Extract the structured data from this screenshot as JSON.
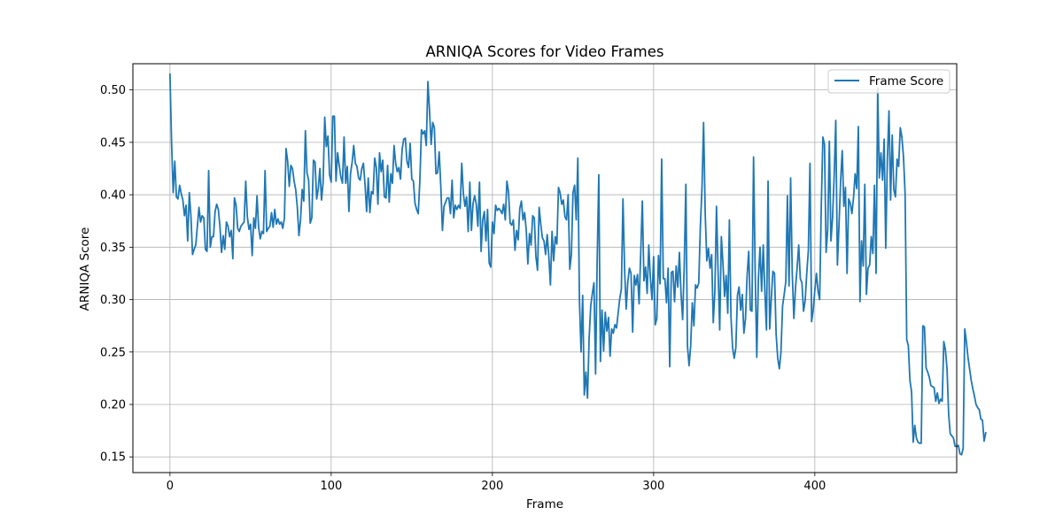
{
  "chart_data": {
    "type": "line",
    "title": "ARNIQA Scores for Video Frames",
    "xlabel": "Frame",
    "ylabel": "ARNIQA Score",
    "xlim": [
      -23,
      488
    ],
    "ylim": [
      0.135,
      0.525
    ],
    "x_ticks": [
      0,
      100,
      200,
      300,
      400
    ],
    "y_ticks": [
      0.15,
      0.2,
      0.25,
      0.3,
      0.35,
      0.4,
      0.45,
      0.5
    ],
    "x_tick_labels": [
      "0",
      "100",
      "200",
      "300",
      "400"
    ],
    "y_tick_labels": [
      "0.15",
      "0.20",
      "0.25",
      "0.30",
      "0.35",
      "0.40",
      "0.45",
      "0.50"
    ],
    "grid": true,
    "legend_position": "top-right",
    "colors": {
      "line": "#1f77b4",
      "grid": "#b0b0b0"
    },
    "series": [
      {
        "name": "Frame Score",
        "x_start": 0,
        "x_step": 1,
        "values": [
          0.515,
          0.45,
          0.402,
          0.432,
          0.398,
          0.396,
          0.409,
          0.401,
          0.395,
          0.38,
          0.39,
          0.356,
          0.402,
          0.38,
          0.343,
          0.348,
          0.352,
          0.37,
          0.388,
          0.374,
          0.38,
          0.378,
          0.348,
          0.346,
          0.423,
          0.35,
          0.36,
          0.36,
          0.384,
          0.391,
          0.386,
          0.37,
          0.345,
          0.361,
          0.348,
          0.374,
          0.37,
          0.36,
          0.366,
          0.339,
          0.397,
          0.39,
          0.368,
          0.365,
          0.37,
          0.372,
          0.374,
          0.413,
          0.379,
          0.367,
          0.372,
          0.342,
          0.378,
          0.368,
          0.399,
          0.369,
          0.358,
          0.365,
          0.363,
          0.423,
          0.365,
          0.368,
          0.37,
          0.383,
          0.369,
          0.386,
          0.372,
          0.377,
          0.372,
          0.374,
          0.368,
          0.378,
          0.444,
          0.432,
          0.408,
          0.428,
          0.425,
          0.413,
          0.405,
          0.388,
          0.361,
          0.376,
          0.405,
          0.394,
          0.461,
          0.421,
          0.414,
          0.373,
          0.378,
          0.433,
          0.431,
          0.396,
          0.406,
          0.425,
          0.395,
          0.412,
          0.474,
          0.446,
          0.456,
          0.419,
          0.412,
          0.475,
          0.475,
          0.413,
          0.44,
          0.428,
          0.417,
          0.411,
          0.455,
          0.411,
          0.427,
          0.384,
          0.42,
          0.431,
          0.447,
          0.43,
          0.427,
          0.416,
          0.414,
          0.425,
          0.43,
          0.41,
          0.384,
          0.416,
          0.383,
          0.403,
          0.401,
          0.435,
          0.426,
          0.391,
          0.44,
          0.422,
          0.433,
          0.398,
          0.397,
          0.428,
          0.393,
          0.42,
          0.411,
          0.447,
          0.43,
          0.422,
          0.426,
          0.415,
          0.443,
          0.453,
          0.454,
          0.432,
          0.426,
          0.449,
          0.415,
          0.413,
          0.392,
          0.386,
          0.382,
          0.413,
          0.462,
          0.458,
          0.461,
          0.447,
          0.508,
          0.48,
          0.448,
          0.469,
          0.464,
          0.42,
          0.421,
          0.441,
          0.408,
          0.366,
          0.389,
          0.393,
          0.397,
          0.397,
          0.382,
          0.414,
          0.378,
          0.39,
          0.386,
          0.39,
          0.387,
          0.43,
          0.401,
          0.389,
          0.398,
          0.365,
          0.412,
          0.366,
          0.392,
          0.399,
          0.391,
          0.37,
          0.412,
          0.346,
          0.376,
          0.384,
          0.356,
          0.386,
          0.335,
          0.331,
          0.374,
          0.363,
          0.39,
          0.385,
          0.387,
          0.385,
          0.382,
          0.391,
          0.376,
          0.413,
          0.403,
          0.373,
          0.371,
          0.376,
          0.347,
          0.366,
          0.357,
          0.387,
          0.394,
          0.376,
          0.383,
          0.366,
          0.334,
          0.363,
          0.352,
          0.38,
          0.378,
          0.341,
          0.328,
          0.388,
          0.372,
          0.359,
          0.356,
          0.343,
          0.362,
          0.341,
          0.314,
          0.365,
          0.337,
          0.36,
          0.353,
          0.407,
          0.402,
          0.391,
          0.395,
          0.379,
          0.376,
          0.4,
          0.329,
          0.343,
          0.402,
          0.409,
          0.376,
          0.435,
          0.299,
          0.25,
          0.304,
          0.209,
          0.231,
          0.206,
          0.263,
          0.294,
          0.306,
          0.316,
          0.229,
          0.338,
          0.419,
          0.241,
          0.29,
          0.251,
          0.288,
          0.27,
          0.283,
          0.246,
          0.272,
          0.268,
          0.276,
          0.273,
          0.287,
          0.301,
          0.31,
          0.396,
          0.329,
          0.291,
          0.317,
          0.33,
          0.325,
          0.269,
          0.323,
          0.314,
          0.324,
          0.296,
          0.344,
          0.394,
          0.318,
          0.331,
          0.306,
          0.352,
          0.32,
          0.3,
          0.341,
          0.276,
          0.282,
          0.342,
          0.315,
          0.434,
          0.32,
          0.32,
          0.297,
          0.33,
          0.236,
          0.326,
          0.327,
          0.298,
          0.332,
          0.312,
          0.345,
          0.306,
          0.281,
          0.332,
          0.41,
          0.256,
          0.237,
          0.256,
          0.297,
          0.275,
          0.314,
          0.311,
          0.316,
          0.37,
          0.406,
          0.469,
          0.382,
          0.337,
          0.349,
          0.33,
          0.343,
          0.278,
          0.308,
          0.389,
          0.327,
          0.271,
          0.36,
          0.335,
          0.303,
          0.323,
          0.287,
          0.376,
          0.283,
          0.254,
          0.244,
          0.254,
          0.304,
          0.312,
          0.29,
          0.305,
          0.268,
          0.282,
          0.323,
          0.346,
          0.29,
          0.289,
          0.436,
          0.328,
          0.245,
          0.32,
          0.35,
          0.308,
          0.352,
          0.308,
          0.271,
          0.413,
          0.272,
          0.301,
          0.327,
          0.325,
          0.267,
          0.244,
          0.234,
          0.25,
          0.294,
          0.305,
          0.317,
          0.399,
          0.313,
          0.416,
          0.325,
          0.282,
          0.311,
          0.33,
          0.352,
          0.32,
          0.316,
          0.289,
          0.299,
          0.325,
          0.347,
          0.43,
          0.279,
          0.29,
          0.309,
          0.325,
          0.308,
          0.3,
          0.389,
          0.455,
          0.448,
          0.345,
          0.367,
          0.451,
          0.356,
          0.378,
          0.418,
          0.471,
          0.333,
          0.371,
          0.413,
          0.442,
          0.389,
          0.407,
          0.325,
          0.396,
          0.392,
          0.382,
          0.397,
          0.42,
          0.406,
          0.465,
          0.298,
          0.356,
          0.332,
          0.41,
          0.305,
          0.33,
          0.333,
          0.36,
          0.344,
          0.409,
          0.325,
          0.502,
          0.416,
          0.44,
          0.414,
          0.453,
          0.349,
          0.434,
          0.48,
          0.395,
          0.457,
          0.405,
          0.398,
          0.434,
          0.427,
          0.464,
          0.455,
          0.436,
          0.401,
          0.262,
          0.256,
          0.223,
          0.212,
          0.164,
          0.18,
          0.168,
          0.164,
          0.163,
          0.163,
          0.275,
          0.274,
          0.235,
          0.231,
          0.226,
          0.218,
          0.217,
          0.216,
          0.203,
          0.211,
          0.201,
          0.205,
          0.203,
          0.26,
          0.252,
          0.234,
          0.191,
          0.172,
          0.17,
          0.168,
          0.16,
          0.16,
          0.161,
          0.153,
          0.152,
          0.158,
          0.272,
          0.26,
          0.245,
          0.234,
          0.223,
          0.215,
          0.208,
          0.2,
          0.197,
          0.195,
          0.186,
          0.185,
          0.165,
          0.173
        ]
      }
    ]
  }
}
